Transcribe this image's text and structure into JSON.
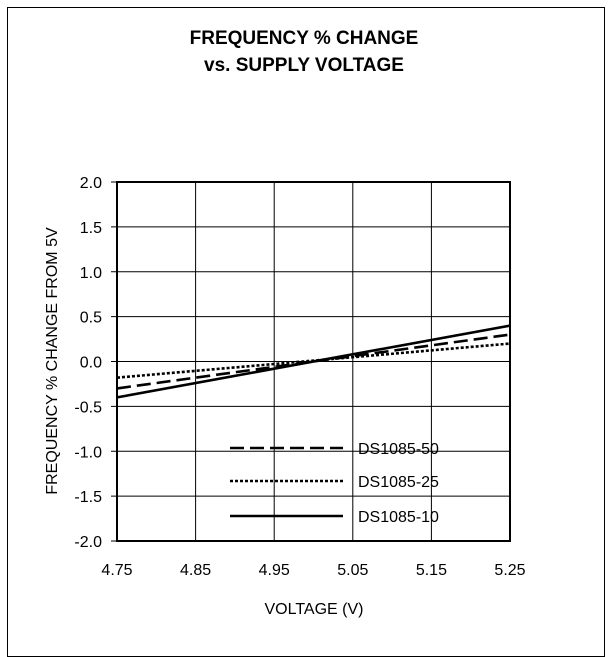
{
  "chart_data": {
    "type": "line",
    "title": "FREQUENCY % CHANGE",
    "subtitle": "vs. SUPPLY VOLTAGE",
    "xlabel": "VOLTAGE (V)",
    "ylabel": "FREQUENCY % CHANGE FROM 5V",
    "xlim": [
      4.75,
      5.25
    ],
    "ylim": [
      -2.0,
      2.0
    ],
    "x_ticks": [
      "4.75",
      "4.85",
      "4.95",
      "5.05",
      "5.15",
      "5.25"
    ],
    "y_ticks": [
      "2.0",
      "1.5",
      "1.0",
      "0.5",
      "0.0",
      "-0.5",
      "-1.0",
      "-1.5",
      "-2.0"
    ],
    "grid": true,
    "legend_position": "bottom-center",
    "series": [
      {
        "name": "DS1085-50",
        "style": "dashed",
        "x": [
          4.75,
          5.25
        ],
        "y": [
          -0.3,
          0.3
        ]
      },
      {
        "name": "DS1085-25",
        "style": "dotted",
        "x": [
          4.75,
          5.25
        ],
        "y": [
          -0.18,
          0.2
        ]
      },
      {
        "name": "DS1085-10",
        "style": "solid",
        "x": [
          4.75,
          5.25
        ],
        "y": [
          -0.4,
          0.4
        ]
      }
    ],
    "colors": {
      "line": "#000000",
      "grid": "#000000",
      "background": "#ffffff"
    }
  }
}
